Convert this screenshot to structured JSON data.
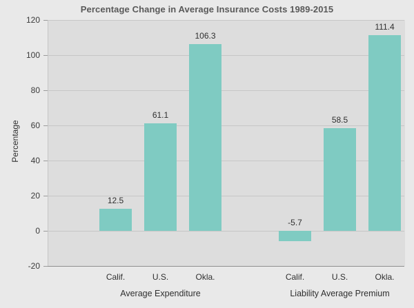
{
  "chart_data": {
    "type": "bar",
    "title": "Percentage Change in Average Insurance Costs 1989-2015",
    "ylabel": "Percentage",
    "xlabel": "",
    "ylim": [
      -20,
      120
    ],
    "yticks": [
      -20,
      0,
      20,
      40,
      60,
      80,
      100,
      120
    ],
    "grid": true,
    "legend_position": "none",
    "value_labels_shown": true,
    "groups": [
      {
        "label": "Average Expenditure",
        "categories": [
          "Calif.",
          "U.S.",
          "Okla."
        ],
        "values": [
          12.5,
          61.1,
          106.3
        ]
      },
      {
        "label": "Liability Average Premium",
        "categories": [
          "Calif.",
          "U.S.",
          "Okla."
        ],
        "values": [
          -5.7,
          58.5,
          111.4
        ]
      }
    ],
    "colors": {
      "bar": "#7fcbc2",
      "figure_background": "#e9e9e9",
      "plot_background": "#dddddd",
      "gridline": "#c6c6c6",
      "axis_line": "#8f8f8f",
      "title_text": "#595959",
      "tick_text": "#3a3a3a",
      "label_text": "#2f2f2f"
    }
  }
}
